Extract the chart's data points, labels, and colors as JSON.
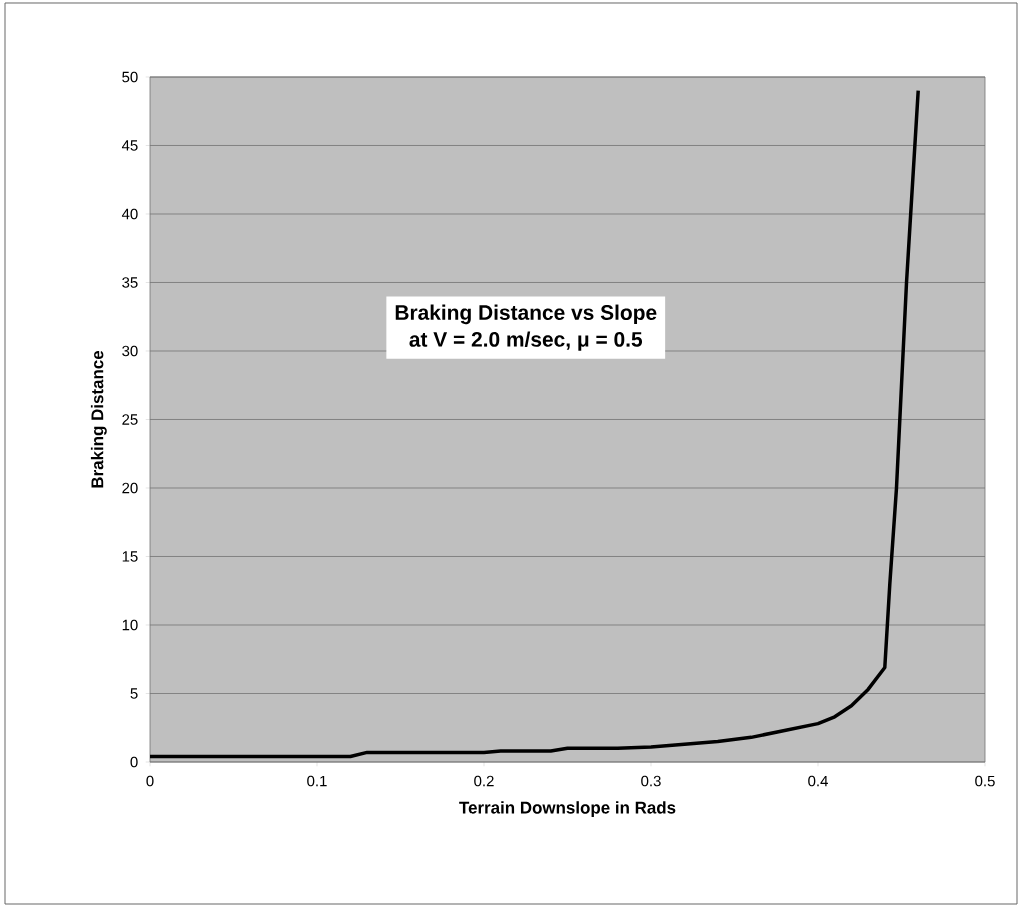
{
  "chart_data": {
    "type": "line",
    "title": "Braking Distance vs Slope",
    "subtitle": "at V = 2.0 m/sec, μ = 0.5",
    "xlabel": "Terrain Downslope in Rads",
    "ylabel": "Braking Distance",
    "x": [
      0,
      0.12,
      0.13,
      0.2,
      0.21,
      0.24,
      0.25,
      0.28,
      0.3,
      0.34,
      0.36,
      0.38,
      0.4,
      0.41,
      0.42,
      0.43,
      0.44,
      0.443,
      0.447,
      0.453,
      0.46
    ],
    "series": [
      {
        "color": "#000000",
        "values": [
          0.4,
          0.4,
          0.7,
          0.7,
          0.8,
          0.8,
          1.0,
          1.0,
          1.1,
          1.5,
          1.8,
          2.3,
          2.8,
          3.3,
          4.1,
          5.3,
          6.9,
          13,
          20,
          35,
          49
        ]
      }
    ],
    "xlim": [
      0,
      0.5
    ],
    "xticks": [
      0,
      0.1,
      0.2,
      0.3,
      0.4,
      0.5
    ],
    "ylim": [
      0,
      50
    ],
    "yticks": [
      0,
      5,
      10,
      15,
      20,
      25,
      30,
      35,
      40,
      45,
      50
    ],
    "grid": "y",
    "marker": "none",
    "line_style": "solid"
  }
}
